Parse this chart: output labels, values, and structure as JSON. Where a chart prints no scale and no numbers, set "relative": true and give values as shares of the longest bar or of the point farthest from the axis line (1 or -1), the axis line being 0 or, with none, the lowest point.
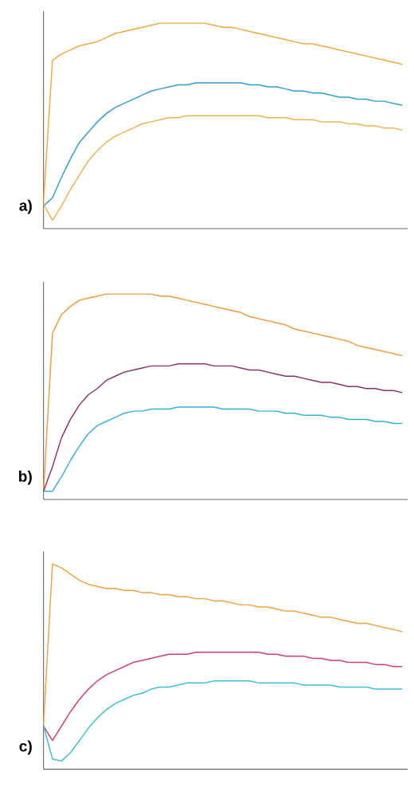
{
  "chart_data": [
    {
      "type": "line",
      "relative": true,
      "annotations": [
        "a)"
      ],
      "marker": "none",
      "line_style": "solid",
      "categories": [
        null,
        null,
        null,
        null,
        null,
        null,
        null,
        null,
        null,
        null,
        null,
        null,
        null,
        null,
        null,
        null,
        null,
        null,
        null,
        null,
        null,
        null,
        null,
        null,
        null,
        null,
        null,
        null,
        null,
        null,
        null,
        null,
        null,
        null,
        null,
        null,
        null,
        null,
        null,
        null,
        null
      ],
      "series": [
        {
          "color": "#f2a93b",
          "values": [
            0.13,
            0.82,
            0.85,
            0.87,
            0.89,
            0.9,
            0.91,
            0.93,
            0.95,
            0.96,
            0.97,
            0.98,
            0.99,
            1,
            1,
            1,
            1,
            1,
            1,
            0.99,
            0.98,
            0.98,
            0.97,
            0.96,
            0.95,
            0.94,
            0.93,
            0.92,
            0.91,
            0.9,
            0.9,
            0.89,
            0.88,
            0.87,
            0.86,
            0.85,
            0.84,
            0.83,
            0.82,
            0.81,
            0.8
          ]
        },
        {
          "color": "#2b9fd4",
          "values": [
            0.11,
            0.15,
            0.25,
            0.34,
            0.42,
            0.47,
            0.52,
            0.56,
            0.59,
            0.61,
            0.63,
            0.65,
            0.67,
            0.68,
            0.69,
            0.7,
            0.7,
            0.71,
            0.71,
            0.71,
            0.71,
            0.71,
            0.71,
            0.7,
            0.7,
            0.69,
            0.69,
            0.68,
            0.67,
            0.67,
            0.66,
            0.66,
            0.65,
            0.64,
            0.64,
            0.63,
            0.63,
            0.62,
            0.62,
            0.61,
            0.6
          ]
        },
        {
          "color": "#f2b24a",
          "values": [
            0.12,
            0.04,
            0.11,
            0.19,
            0.26,
            0.33,
            0.38,
            0.42,
            0.45,
            0.47,
            0.49,
            0.51,
            0.52,
            0.53,
            0.54,
            0.54,
            0.55,
            0.55,
            0.55,
            0.55,
            0.55,
            0.55,
            0.55,
            0.55,
            0.55,
            0.54,
            0.54,
            0.54,
            0.53,
            0.53,
            0.53,
            0.52,
            0.52,
            0.52,
            0.51,
            0.51,
            0.5,
            0.5,
            0.49,
            0.49,
            0.48
          ]
        }
      ]
    },
    {
      "type": "line",
      "relative": true,
      "annotations": [
        "b)"
      ],
      "marker": "none",
      "line_style": "solid",
      "categories": [
        null,
        null,
        null,
        null,
        null,
        null,
        null,
        null,
        null,
        null,
        null,
        null,
        null,
        null,
        null,
        null,
        null,
        null,
        null,
        null,
        null,
        null,
        null,
        null,
        null,
        null,
        null,
        null,
        null,
        null,
        null,
        null,
        null,
        null,
        null,
        null,
        null,
        null,
        null,
        null,
        null
      ],
      "series": [
        {
          "color": "#f29a38",
          "values": [
            0.04,
            0.81,
            0.9,
            0.94,
            0.97,
            0.98,
            0.99,
            1,
            1,
            1,
            1,
            1,
            1,
            0.99,
            0.99,
            0.98,
            0.97,
            0.96,
            0.95,
            0.94,
            0.93,
            0.92,
            0.91,
            0.89,
            0.88,
            0.87,
            0.86,
            0.85,
            0.83,
            0.82,
            0.81,
            0.8,
            0.79,
            0.78,
            0.77,
            0.75,
            0.74,
            0.73,
            0.72,
            0.71,
            0.7
          ]
        },
        {
          "color": "#8e2f6a",
          "values": [
            0.04,
            0.16,
            0.3,
            0.39,
            0.46,
            0.51,
            0.54,
            0.58,
            0.6,
            0.62,
            0.63,
            0.64,
            0.65,
            0.65,
            0.65,
            0.66,
            0.66,
            0.66,
            0.66,
            0.65,
            0.65,
            0.65,
            0.64,
            0.63,
            0.63,
            0.62,
            0.61,
            0.6,
            0.6,
            0.59,
            0.58,
            0.57,
            0.57,
            0.56,
            0.55,
            0.55,
            0.54,
            0.54,
            0.53,
            0.53,
            0.52
          ]
        },
        {
          "color": "#33b2dc",
          "values": [
            0.04,
            0.04,
            0.11,
            0.19,
            0.26,
            0.32,
            0.36,
            0.38,
            0.4,
            0.42,
            0.43,
            0.43,
            0.44,
            0.44,
            0.44,
            0.45,
            0.45,
            0.45,
            0.45,
            0.45,
            0.44,
            0.44,
            0.44,
            0.44,
            0.43,
            0.43,
            0.43,
            0.42,
            0.42,
            0.41,
            0.41,
            0.41,
            0.4,
            0.4,
            0.39,
            0.39,
            0.39,
            0.38,
            0.38,
            0.37,
            0.37
          ]
        }
      ]
    },
    {
      "type": "line",
      "relative": true,
      "annotations": [
        "c)"
      ],
      "marker": "none",
      "line_style": "solid",
      "categories": [
        null,
        null,
        null,
        null,
        null,
        null,
        null,
        null,
        null,
        null,
        null,
        null,
        null,
        null,
        null,
        null,
        null,
        null,
        null,
        null,
        null,
        null,
        null,
        null,
        null,
        null,
        null,
        null,
        null,
        null,
        null,
        null,
        null,
        null,
        null,
        null,
        null,
        null,
        null,
        null,
        null
      ],
      "series": [
        {
          "color": "#f2a23c",
          "values": [
            0.22,
            1,
            0.98,
            0.95,
            0.92,
            0.9,
            0.89,
            0.88,
            0.88,
            0.87,
            0.87,
            0.86,
            0.86,
            0.85,
            0.85,
            0.84,
            0.84,
            0.83,
            0.83,
            0.82,
            0.82,
            0.81,
            0.8,
            0.8,
            0.79,
            0.79,
            0.78,
            0.77,
            0.77,
            0.76,
            0.75,
            0.74,
            0.74,
            0.73,
            0.72,
            0.71,
            0.71,
            0.7,
            0.69,
            0.68,
            0.67
          ]
        },
        {
          "color": "#d63d73",
          "values": [
            0.21,
            0.14,
            0.21,
            0.28,
            0.34,
            0.39,
            0.43,
            0.46,
            0.48,
            0.5,
            0.52,
            0.53,
            0.54,
            0.55,
            0.56,
            0.56,
            0.56,
            0.57,
            0.57,
            0.57,
            0.57,
            0.57,
            0.57,
            0.57,
            0.57,
            0.56,
            0.56,
            0.55,
            0.55,
            0.55,
            0.54,
            0.54,
            0.53,
            0.53,
            0.52,
            0.52,
            0.52,
            0.51,
            0.51,
            0.5,
            0.5
          ]
        },
        {
          "color": "#3cc0d8",
          "values": [
            0.21,
            0.05,
            0.04,
            0.08,
            0.14,
            0.2,
            0.25,
            0.29,
            0.32,
            0.34,
            0.36,
            0.37,
            0.39,
            0.4,
            0.4,
            0.41,
            0.42,
            0.42,
            0.42,
            0.43,
            0.43,
            0.43,
            0.43,
            0.43,
            0.42,
            0.42,
            0.42,
            0.42,
            0.42,
            0.41,
            0.41,
            0.41,
            0.41,
            0.4,
            0.4,
            0.4,
            0.4,
            0.39,
            0.39,
            0.39,
            0.39
          ]
        }
      ]
    }
  ]
}
